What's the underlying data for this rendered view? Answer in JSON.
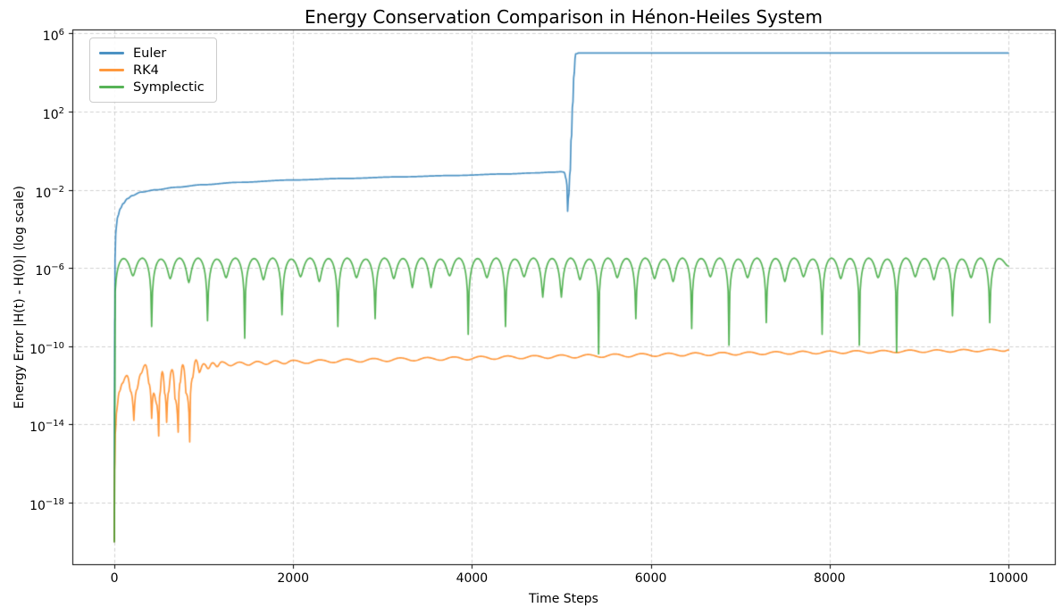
{
  "chart_data": {
    "type": "line",
    "title": "Energy Conservation Comparison in Hénon-Heiles System",
    "xlabel": "Time Steps",
    "ylabel": "Energy Error |H(t) - H(0)| (log scale)",
    "x_ticks": [
      0,
      2000,
      4000,
      6000,
      8000,
      10000
    ],
    "x_tick_labels": [
      "0",
      "2000",
      "4000",
      "6000",
      "8000",
      "10000"
    ],
    "y_ticks": [
      {
        "base": "10",
        "exp": "6",
        "log10": 6
      },
      {
        "base": "10",
        "exp": "2",
        "log10": 2
      },
      {
        "base": "10",
        "exp": "−2",
        "log10": -2
      },
      {
        "base": "10",
        "exp": "−6",
        "log10": -6
      },
      {
        "base": "10",
        "exp": "−10",
        "log10": -10
      },
      {
        "base": "10",
        "exp": "−14",
        "log10": -14
      },
      {
        "base": "10",
        "exp": "−18",
        "log10": -18
      }
    ],
    "xlim": [
      -470,
      10530
    ],
    "ylim_log10": [
      -21.2,
      6.2
    ],
    "grid": "dashed",
    "grid_color": "#cccccc",
    "frame_color": "#000000",
    "legend_position": "upper-left",
    "line_alpha": 0.8,
    "line_width": 1.7,
    "series": [
      {
        "name": "Euler",
        "color": "#1f77b4",
        "points_t_log10": [
          [
            0,
            -20
          ],
          [
            2,
            -13
          ],
          [
            5,
            -8.5
          ],
          [
            10,
            -5.2
          ],
          [
            20,
            -4.0
          ],
          [
            40,
            -3.35
          ],
          [
            70,
            -2.95
          ],
          [
            100,
            -2.7
          ],
          [
            150,
            -2.45
          ],
          [
            200,
            -2.3
          ],
          [
            300,
            -2.12
          ],
          [
            470,
            -2.0
          ],
          [
            700,
            -1.87
          ],
          [
            1000,
            -1.74
          ],
          [
            1400,
            -1.62
          ],
          [
            2000,
            -1.5
          ],
          [
            2600,
            -1.42
          ],
          [
            3200,
            -1.34
          ],
          [
            3800,
            -1.27
          ],
          [
            4400,
            -1.19
          ],
          [
            4700,
            -1.14
          ],
          [
            4900,
            -1.1
          ],
          [
            5000,
            -1.08
          ],
          [
            5030,
            -1.1
          ],
          [
            5055,
            -1.5
          ],
          [
            5070,
            -3.1
          ],
          [
            5085,
            -2.2
          ],
          [
            5100,
            -1.0
          ],
          [
            5115,
            0.8
          ],
          [
            5130,
            2.5
          ],
          [
            5145,
            4.0
          ],
          [
            5160,
            4.95
          ],
          [
            5200,
            5.0
          ],
          [
            6000,
            5.0
          ],
          [
            7000,
            5.0
          ],
          [
            8000,
            5.0
          ],
          [
            9000,
            5.0
          ],
          [
            10000,
            5.0
          ]
        ]
      },
      {
        "name": "RK4",
        "color": "#ff7f0e",
        "points_t_log10": [
          [
            0,
            -20
          ],
          [
            5,
            -16
          ],
          [
            15,
            -14.2
          ],
          [
            30,
            -13.2
          ],
          [
            60,
            -12.3
          ],
          [
            90,
            -11.9
          ],
          [
            140,
            -11.5
          ],
          [
            180,
            -12.3
          ],
          [
            218,
            -13.8
          ],
          [
            255,
            -12.2
          ],
          [
            300,
            -11.4
          ],
          [
            347,
            -10.95
          ],
          [
            385,
            -11.9
          ],
          [
            417,
            -13.7
          ],
          [
            440,
            -12.4
          ],
          [
            468,
            -12.9
          ],
          [
            496,
            -14.6
          ],
          [
            515,
            -12.3
          ],
          [
            536,
            -11.3
          ],
          [
            562,
            -12.4
          ],
          [
            585,
            -13.9
          ],
          [
            610,
            -12.3
          ],
          [
            645,
            -11.2
          ],
          [
            678,
            -12.7
          ],
          [
            714,
            -14.4
          ],
          [
            740,
            -11.8
          ],
          [
            764,
            -10.95
          ],
          [
            800,
            -12.4
          ],
          [
            843,
            -14.9
          ],
          [
            878,
            -11.6
          ],
          [
            913,
            -10.7
          ],
          [
            950,
            -11.35
          ],
          [
            1000,
            -10.9
          ],
          [
            1050,
            -11.15
          ],
          [
            1100,
            -10.85
          ],
          [
            1150,
            -11.05
          ],
          [
            1200,
            -10.8
          ],
          [
            1300,
            -11.0
          ],
          [
            1400,
            -10.82
          ],
          [
            1500,
            -10.97
          ],
          [
            1600,
            -10.78
          ],
          [
            1700,
            -10.93
          ],
          [
            1800,
            -10.75
          ],
          [
            1900,
            -10.9
          ],
          [
            2000,
            -10.72
          ],
          [
            2150,
            -10.88
          ],
          [
            2300,
            -10.7
          ],
          [
            2450,
            -10.84
          ],
          [
            2600,
            -10.66
          ],
          [
            2750,
            -10.81
          ],
          [
            2900,
            -10.63
          ],
          [
            3050,
            -10.78
          ],
          [
            3200,
            -10.6
          ],
          [
            3350,
            -10.75
          ],
          [
            3500,
            -10.58
          ],
          [
            3650,
            -10.72
          ],
          [
            3800,
            -10.55
          ],
          [
            3950,
            -10.7
          ],
          [
            4100,
            -10.52
          ],
          [
            4250,
            -10.67
          ],
          [
            4400,
            -10.5
          ],
          [
            4550,
            -10.64
          ],
          [
            4700,
            -10.48
          ],
          [
            4850,
            -10.62
          ],
          [
            5000,
            -10.45
          ],
          [
            5150,
            -10.6
          ],
          [
            5300,
            -10.43
          ],
          [
            5450,
            -10.57
          ],
          [
            5600,
            -10.4
          ],
          [
            5750,
            -10.55
          ],
          [
            5900,
            -10.38
          ],
          [
            6050,
            -10.52
          ],
          [
            6200,
            -10.36
          ],
          [
            6350,
            -10.5
          ],
          [
            6500,
            -10.34
          ],
          [
            6650,
            -10.48
          ],
          [
            6800,
            -10.32
          ],
          [
            6950,
            -10.45
          ],
          [
            7100,
            -10.3
          ],
          [
            7250,
            -10.43
          ],
          [
            7400,
            -10.28
          ],
          [
            7550,
            -10.41
          ],
          [
            7700,
            -10.26
          ],
          [
            7850,
            -10.39
          ],
          [
            8000,
            -10.25
          ],
          [
            8150,
            -10.37
          ],
          [
            8300,
            -10.23
          ],
          [
            8450,
            -10.35
          ],
          [
            8600,
            -10.22
          ],
          [
            8750,
            -10.33
          ],
          [
            8900,
            -10.2
          ],
          [
            9050,
            -10.32
          ],
          [
            9200,
            -10.19
          ],
          [
            9350,
            -10.3
          ],
          [
            9500,
            -10.17
          ],
          [
            9650,
            -10.28
          ],
          [
            9800,
            -10.16
          ],
          [
            9950,
            -10.26
          ],
          [
            10000,
            -10.2
          ]
        ]
      },
      {
        "name": "Symplectic",
        "color": "#2ca02c",
        "points_t_log10": [
          [
            0,
            -20
          ],
          [
            104,
            -5.52
          ],
          [
            208,
            -6.4
          ],
          [
            313,
            -5.5
          ],
          [
            417,
            -9.0
          ],
          [
            521,
            -5.55
          ],
          [
            625,
            -6.55
          ],
          [
            729,
            -5.5
          ],
          [
            833,
            -6.75
          ],
          [
            937,
            -5.5
          ],
          [
            1042,
            -8.7
          ],
          [
            1146,
            -5.55
          ],
          [
            1250,
            -6.5
          ],
          [
            1354,
            -5.5
          ],
          [
            1458,
            -9.6
          ],
          [
            1563,
            -5.52
          ],
          [
            1667,
            -6.6
          ],
          [
            1771,
            -5.5
          ],
          [
            1875,
            -8.4
          ],
          [
            1979,
            -5.55
          ],
          [
            2083,
            -6.45
          ],
          [
            2188,
            -5.5
          ],
          [
            2292,
            -6.7
          ],
          [
            2396,
            -5.52
          ],
          [
            2500,
            -9.0
          ],
          [
            2604,
            -5.5
          ],
          [
            2708,
            -6.5
          ],
          [
            2813,
            -5.55
          ],
          [
            2917,
            -8.6
          ],
          [
            3021,
            -5.5
          ],
          [
            3125,
            -6.55
          ],
          [
            3229,
            -5.52
          ],
          [
            3333,
            -7.0
          ],
          [
            3438,
            -5.5
          ],
          [
            3542,
            -7.0
          ],
          [
            3646,
            -5.55
          ],
          [
            3750,
            -6.4
          ],
          [
            3854,
            -5.5
          ],
          [
            3958,
            -9.4
          ],
          [
            4063,
            -5.52
          ],
          [
            4167,
            -6.5
          ],
          [
            4271,
            -5.5
          ],
          [
            4375,
            -9.0
          ],
          [
            4479,
            -5.55
          ],
          [
            4583,
            -6.45
          ],
          [
            4688,
            -5.5
          ],
          [
            4792,
            -7.5
          ],
          [
            4896,
            -5.52
          ],
          [
            5000,
            -7.5
          ],
          [
            5104,
            -5.5
          ],
          [
            5208,
            -6.6
          ],
          [
            5313,
            -5.55
          ],
          [
            5417,
            -10.4
          ],
          [
            5521,
            -5.5
          ],
          [
            5625,
            -6.5
          ],
          [
            5729,
            -5.52
          ],
          [
            5833,
            -8.6
          ],
          [
            5938,
            -5.5
          ],
          [
            6042,
            -6.55
          ],
          [
            6146,
            -5.55
          ],
          [
            6250,
            -6.7
          ],
          [
            6354,
            -5.5
          ],
          [
            6458,
            -9.1
          ],
          [
            6563,
            -5.52
          ],
          [
            6667,
            -6.45
          ],
          [
            6771,
            -5.5
          ],
          [
            6875,
            -9.95
          ],
          [
            6979,
            -5.55
          ],
          [
            7083,
            -6.5
          ],
          [
            7188,
            -5.5
          ],
          [
            7292,
            -8.8
          ],
          [
            7396,
            -5.52
          ],
          [
            7500,
            -6.7
          ],
          [
            7604,
            -5.5
          ],
          [
            7708,
            -6.45
          ],
          [
            7813,
            -5.55
          ],
          [
            7917,
            -9.4
          ],
          [
            8021,
            -5.5
          ],
          [
            8125,
            -6.55
          ],
          [
            8229,
            -5.52
          ],
          [
            8333,
            -9.95
          ],
          [
            8438,
            -5.5
          ],
          [
            8542,
            -6.5
          ],
          [
            8646,
            -5.55
          ],
          [
            8750,
            -10.3
          ],
          [
            8854,
            -5.5
          ],
          [
            8958,
            -6.45
          ],
          [
            9063,
            -5.52
          ],
          [
            9167,
            -6.6
          ],
          [
            9271,
            -5.5
          ],
          [
            9375,
            -8.45
          ],
          [
            9479,
            -5.55
          ],
          [
            9583,
            -6.5
          ],
          [
            9688,
            -5.5
          ],
          [
            9792,
            -8.8
          ],
          [
            9896,
            -5.52
          ],
          [
            10000,
            -5.9
          ]
        ]
      }
    ]
  }
}
